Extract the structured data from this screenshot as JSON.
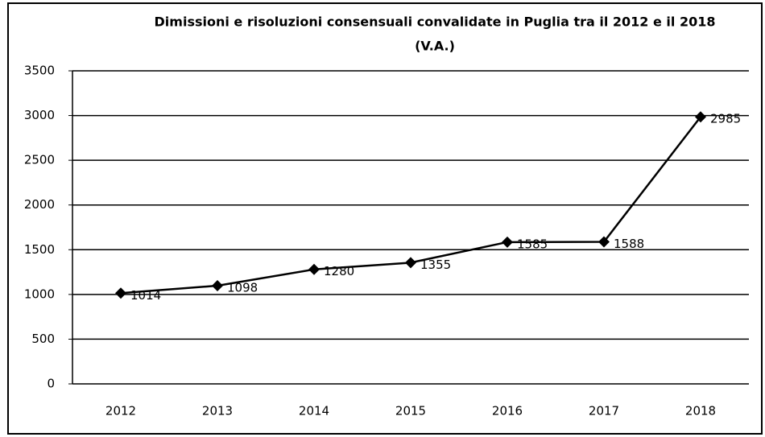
{
  "chart_data": {
    "type": "line",
    "title": "Dimissioni e risoluzioni consensuali convalidate in Puglia tra il 2012 e il 2018",
    "subtitle": "(V.A.)",
    "categories": [
      "2012",
      "2013",
      "2014",
      "2015",
      "2016",
      "2017",
      "2018"
    ],
    "series": [
      {
        "name": "Dimissioni e risoluzioni consensuali",
        "color": "#000000",
        "values": [
          1014,
          1098,
          1280,
          1355,
          1585,
          1588,
          2985
        ]
      }
    ],
    "ylim": [
      0,
      3500
    ],
    "yticks": [
      0,
      500,
      1000,
      1500,
      2000,
      2500,
      3000,
      3500
    ],
    "grid": true
  }
}
